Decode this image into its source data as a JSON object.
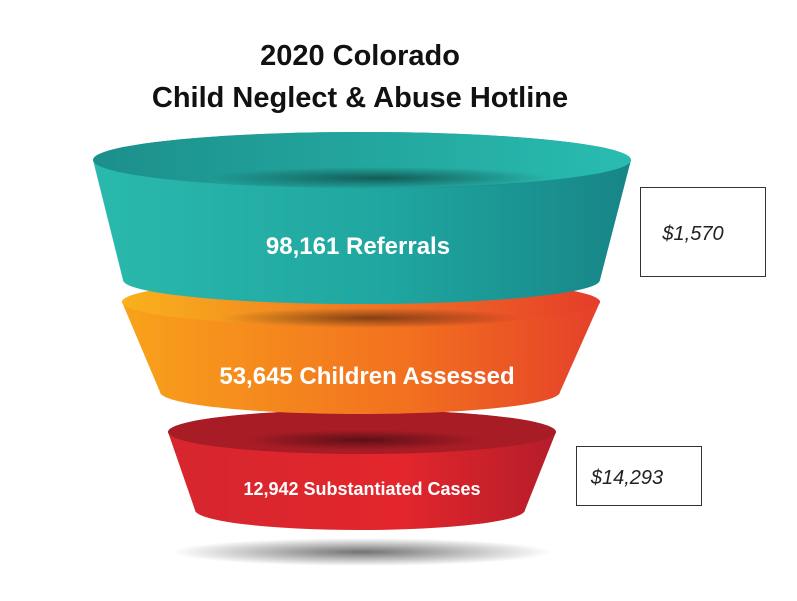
{
  "title": {
    "line1": "2020 Colorado",
    "line2": "Child Neglect & Abuse Hotline"
  },
  "funnel": {
    "stages": [
      {
        "label": "98,161 Referrals"
      },
      {
        "label": "53,645 Children Assessed"
      },
      {
        "label": "12,942 Substantiated Cases"
      }
    ]
  },
  "side_boxes": [
    {
      "text": "$1,570"
    },
    {
      "text": "$14,293"
    }
  ]
}
